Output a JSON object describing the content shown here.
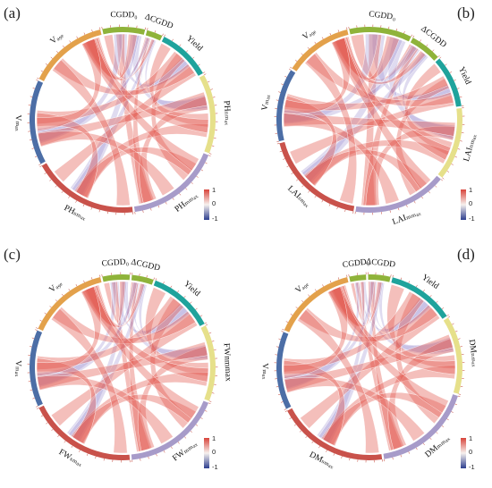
{
  "figure": {
    "colorbar": {
      "top": "1",
      "mid": "0",
      "bottom": "-1",
      "colors": [
        "#d8443b",
        "#f7f1ee",
        "#2c3e8f"
      ]
    },
    "panels": [
      {
        "letter": "(a)",
        "segments": [
          {
            "label": "CGDD₀",
            "color": "#8fb33a",
            "span": 8
          },
          {
            "label": "ΔCGDD",
            "color": "#8fb33a",
            "span": 3
          },
          {
            "label": "Yield",
            "color": "#1fa39c",
            "span": 10
          },
          {
            "label": "PHₙₘₐₓ",
            "color": "#e6e08a",
            "span": 15
          },
          {
            "label": "PHₘₘₐₓ",
            "color": "#a79bc9",
            "span": 18
          },
          {
            "label": "PHₛₘₐₓ",
            "color": "#c9524b",
            "span": 20
          },
          {
            "label": "Vₘₐₓ",
            "color": "#4c6ea6",
            "span": 16
          },
          {
            "label": "Vₐ₉ₑ",
            "color": "#e3a14b",
            "span": 15
          }
        ]
      },
      {
        "letter": "(b)",
        "segments": [
          {
            "label": "CGDD₀",
            "color": "#8fb33a",
            "span": 12
          },
          {
            "label": "ΔCGDD",
            "color": "#8fb33a",
            "span": 6
          },
          {
            "label": "Yield",
            "color": "#1fa39c",
            "span": 10
          },
          {
            "label": "LAIₙₘₐₓ",
            "color": "#e6e08a",
            "span": 14
          },
          {
            "label": "LAIₘₘₐₓ",
            "color": "#a79bc9",
            "span": 18
          },
          {
            "label": "LAIₛₘₐₓ",
            "color": "#c9524b",
            "span": 20
          },
          {
            "label": "Vₘₐₓ",
            "color": "#4c6ea6",
            "span": 14
          },
          {
            "label": "Vₐ₉ₑ",
            "color": "#e3a14b",
            "span": 13
          }
        ]
      },
      {
        "letter": "(c)",
        "segments": [
          {
            "label": "CGDD₀",
            "color": "#8fb33a",
            "span": 5
          },
          {
            "label": "ΔCGDD",
            "color": "#8fb33a",
            "span": 4
          },
          {
            "label": "Yield",
            "color": "#1fa39c",
            "span": 12
          },
          {
            "label": "FWnmmax",
            "color": "#e6e08a",
            "span": 14
          },
          {
            "label": "FWₘₘₐₓ",
            "color": "#a79bc9",
            "span": 18
          },
          {
            "label": "FWₛₘₐₓ",
            "color": "#c9524b",
            "span": 20
          },
          {
            "label": "Vₘₐₓ",
            "color": "#4c6ea6",
            "span": 14
          },
          {
            "label": "Vₐ₉ₑ",
            "color": "#e3a14b",
            "span": 15
          }
        ]
      },
      {
        "letter": "(d)",
        "segments": [
          {
            "label": "CGDD₀",
            "color": "#8fb33a",
            "span": 3
          },
          {
            "label": "ΔCGDD",
            "color": "#8fb33a",
            "span": 4
          },
          {
            "label": "Yield",
            "color": "#1fa39c",
            "span": 12
          },
          {
            "label": "DMₙₘₐₓ",
            "color": "#e6e08a",
            "span": 14
          },
          {
            "label": "DMₘₘₐₓ",
            "color": "#a79bc9",
            "span": 18
          },
          {
            "label": "DMₛₘₐₓ",
            "color": "#c9524b",
            "span": 20
          },
          {
            "label": "Vₘₐₓ",
            "color": "#4c6ea6",
            "span": 14
          },
          {
            "label": "Vₐ₉ₑ",
            "color": "#e3a14b",
            "span": 15
          }
        ]
      }
    ]
  }
}
